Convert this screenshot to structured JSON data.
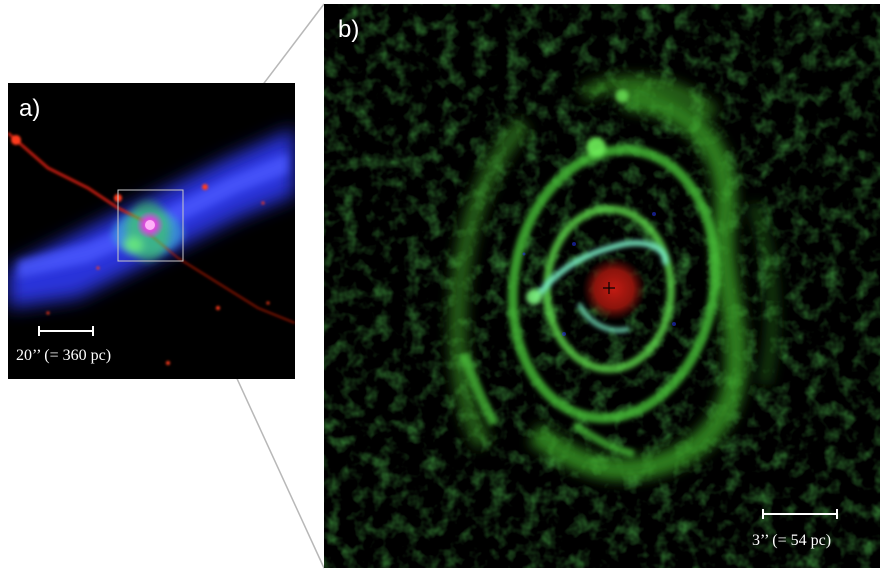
{
  "panel_a": {
    "label": "a)",
    "scale_text": "20’’ (= 360 pc)"
  },
  "panel_b": {
    "label": "b)",
    "scale_text": "3’’ (= 54 pc)"
  },
  "colors": {
    "molecular_gas": "#3a46ff",
    "ionized_gas": "#ff2a10",
    "ring_emission": "#59d93a",
    "nucleus": "#d2201a",
    "connector": "#b8b8b8"
  }
}
